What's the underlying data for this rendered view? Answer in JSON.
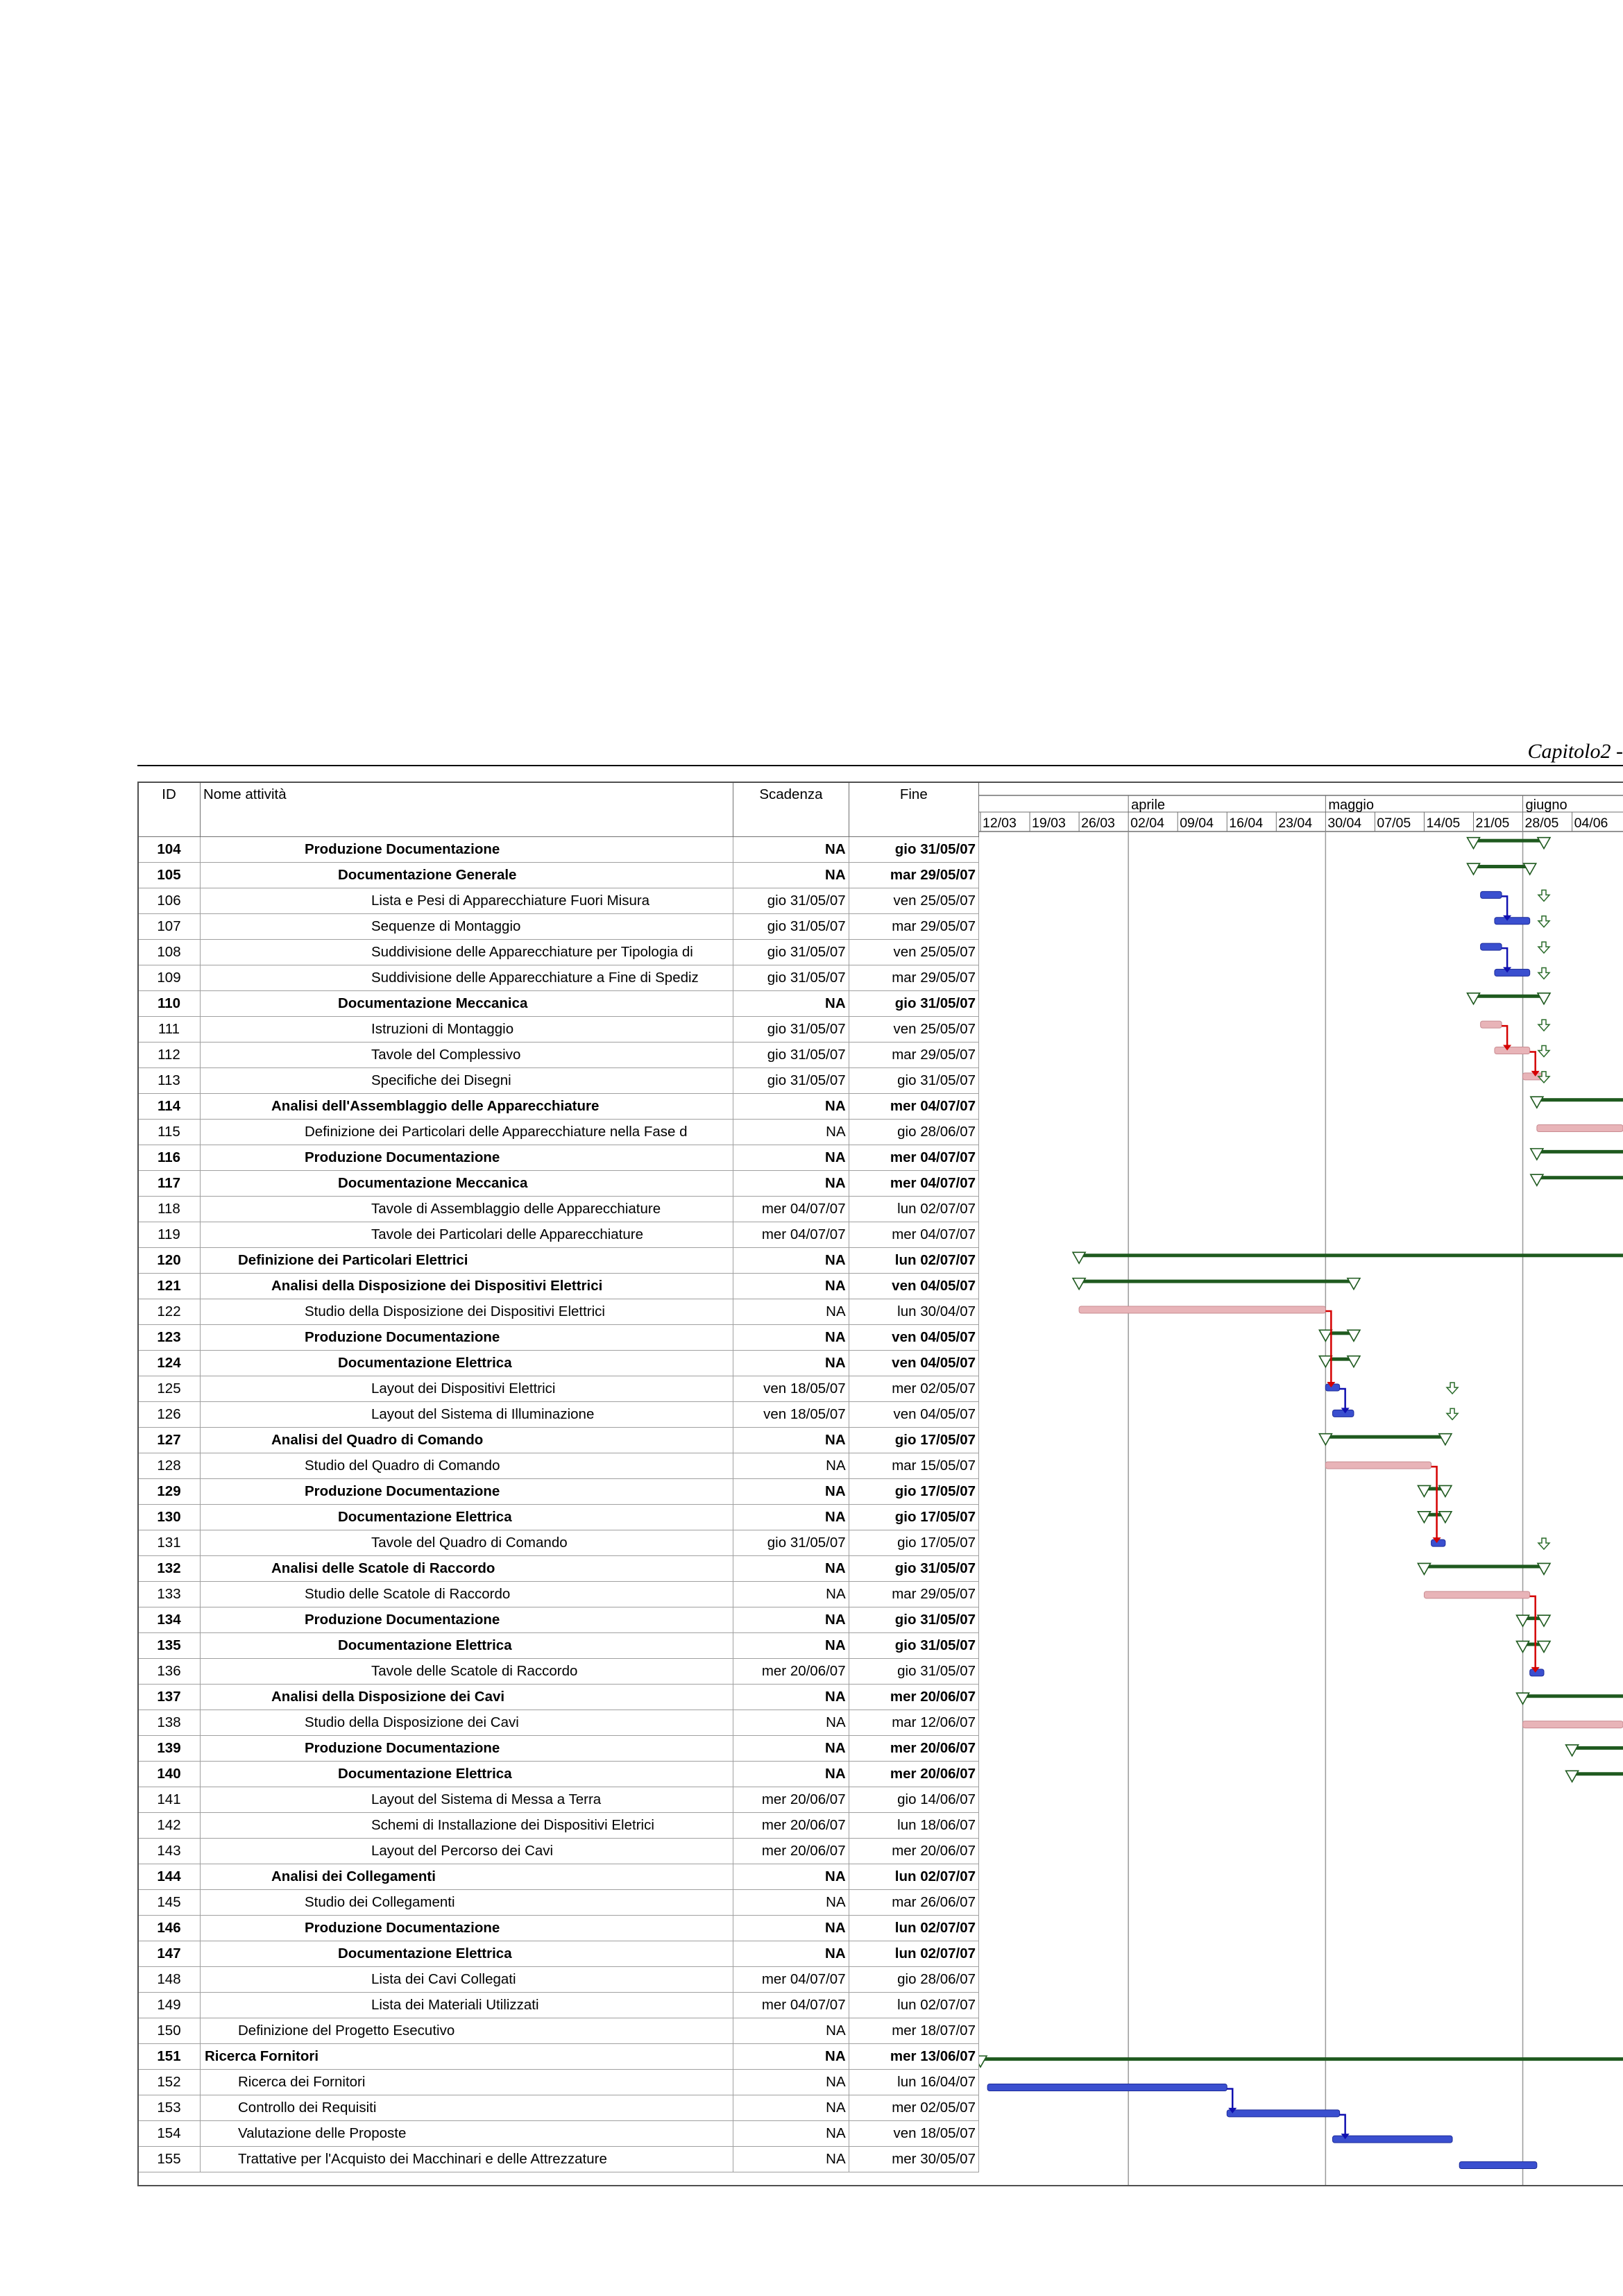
{
  "header": {
    "title": "Capitolo2 -"
  },
  "columns": {
    "id": "ID",
    "name": "Nome attività",
    "deadline": "Scadenza",
    "end": "Fine"
  },
  "timescale": {
    "months": [
      "aprile",
      "maggio",
      "giugno"
    ],
    "weeks": [
      "12/03",
      "19/03",
      "26/03",
      "02/04",
      "09/04",
      "16/04",
      "23/04",
      "30/04",
      "07/05",
      "14/05",
      "21/05",
      "28/05",
      "04/06"
    ]
  },
  "colors": {
    "summary": "#1f5a1f",
    "task_blue": "#3a4fcf",
    "task_pink": "#e8b4b8",
    "critical_link": "#d40000",
    "blue_link": "#1010b0"
  },
  "tasks": [
    {
      "id": "104",
      "name": "Produzione Documentazione",
      "indent": 3,
      "summary": true,
      "deadline": "NA",
      "end": "gio 31/05/07"
    },
    {
      "id": "105",
      "name": "Documentazione Generale",
      "indent": 4,
      "summary": true,
      "deadline": "NA",
      "end": "mar 29/05/07"
    },
    {
      "id": "106",
      "name": "Lista e Pesi di Apparecchiature Fuori Misura",
      "indent": 5,
      "summary": false,
      "deadline": "gio 31/05/07",
      "end": "ven 25/05/07"
    },
    {
      "id": "107",
      "name": "Sequenze di Montaggio",
      "indent": 5,
      "summary": false,
      "deadline": "gio 31/05/07",
      "end": "mar 29/05/07"
    },
    {
      "id": "108",
      "name": "Suddivisione delle Apparecchiature per Tipologia di",
      "indent": 5,
      "summary": false,
      "deadline": "gio 31/05/07",
      "end": "ven 25/05/07"
    },
    {
      "id": "109",
      "name": "Suddivisione delle Apparecchiature a Fine di Spediz",
      "indent": 5,
      "summary": false,
      "deadline": "gio 31/05/07",
      "end": "mar 29/05/07"
    },
    {
      "id": "110",
      "name": "Documentazione Meccanica",
      "indent": 4,
      "summary": true,
      "deadline": "NA",
      "end": "gio 31/05/07"
    },
    {
      "id": "111",
      "name": "Istruzioni di Montaggio",
      "indent": 5,
      "summary": false,
      "deadline": "gio 31/05/07",
      "end": "ven 25/05/07"
    },
    {
      "id": "112",
      "name": "Tavole del Complessivo",
      "indent": 5,
      "summary": false,
      "deadline": "gio 31/05/07",
      "end": "mar 29/05/07"
    },
    {
      "id": "113",
      "name": "Specifiche dei Disegni",
      "indent": 5,
      "summary": false,
      "deadline": "gio 31/05/07",
      "end": "gio 31/05/07"
    },
    {
      "id": "114",
      "name": "Analisi dell'Assemblaggio delle Apparecchiature",
      "indent": 2,
      "summary": true,
      "deadline": "NA",
      "end": "mer 04/07/07"
    },
    {
      "id": "115",
      "name": "Definizione dei Particolari delle Apparecchiature nella Fase d",
      "indent": 3,
      "summary": false,
      "deadline": "NA",
      "end": "gio 28/06/07"
    },
    {
      "id": "116",
      "name": "Produzione Documentazione",
      "indent": 3,
      "summary": true,
      "deadline": "NA",
      "end": "mer 04/07/07"
    },
    {
      "id": "117",
      "name": "Documentazione Meccanica",
      "indent": 4,
      "summary": true,
      "deadline": "NA",
      "end": "mer 04/07/07"
    },
    {
      "id": "118",
      "name": "Tavole di Assemblaggio delle Apparecchiature",
      "indent": 5,
      "summary": false,
      "deadline": "mer 04/07/07",
      "end": "lun 02/07/07"
    },
    {
      "id": "119",
      "name": "Tavole dei Particolari delle Apparecchiature",
      "indent": 5,
      "summary": false,
      "deadline": "mer 04/07/07",
      "end": "mer 04/07/07"
    },
    {
      "id": "120",
      "name": "Definizione dei Particolari Elettrici",
      "indent": 1,
      "summary": true,
      "deadline": "NA",
      "end": "lun 02/07/07"
    },
    {
      "id": "121",
      "name": "Analisi della Disposizione dei Dispositivi Elettrici",
      "indent": 2,
      "summary": true,
      "deadline": "NA",
      "end": "ven 04/05/07"
    },
    {
      "id": "122",
      "name": "Studio della Disposizione dei Dispositivi Elettrici",
      "indent": 3,
      "summary": false,
      "deadline": "NA",
      "end": "lun 30/04/07"
    },
    {
      "id": "123",
      "name": "Produzione Documentazione",
      "indent": 3,
      "summary": true,
      "deadline": "NA",
      "end": "ven 04/05/07"
    },
    {
      "id": "124",
      "name": "Documentazione Elettrica",
      "indent": 4,
      "summary": true,
      "deadline": "NA",
      "end": "ven 04/05/07"
    },
    {
      "id": "125",
      "name": "Layout dei Dispositivi Elettrici",
      "indent": 5,
      "summary": false,
      "deadline": "ven 18/05/07",
      "end": "mer 02/05/07"
    },
    {
      "id": "126",
      "name": "Layout del Sistema di Illuminazione",
      "indent": 5,
      "summary": false,
      "deadline": "ven 18/05/07",
      "end": "ven 04/05/07"
    },
    {
      "id": "127",
      "name": "Analisi del Quadro di Comando",
      "indent": 2,
      "summary": true,
      "deadline": "NA",
      "end": "gio 17/05/07"
    },
    {
      "id": "128",
      "name": "Studio del Quadro di Comando",
      "indent": 3,
      "summary": false,
      "deadline": "NA",
      "end": "mar 15/05/07"
    },
    {
      "id": "129",
      "name": "Produzione Documentazione",
      "indent": 3,
      "summary": true,
      "deadline": "NA",
      "end": "gio 17/05/07"
    },
    {
      "id": "130",
      "name": "Documentazione Elettrica",
      "indent": 4,
      "summary": true,
      "deadline": "NA",
      "end": "gio 17/05/07"
    },
    {
      "id": "131",
      "name": "Tavole del Quadro di Comando",
      "indent": 5,
      "summary": false,
      "deadline": "gio 31/05/07",
      "end": "gio 17/05/07"
    },
    {
      "id": "132",
      "name": "Analisi delle Scatole di Raccordo",
      "indent": 2,
      "summary": true,
      "deadline": "NA",
      "end": "gio 31/05/07"
    },
    {
      "id": "133",
      "name": "Studio delle Scatole di Raccordo",
      "indent": 3,
      "summary": false,
      "deadline": "NA",
      "end": "mar 29/05/07"
    },
    {
      "id": "134",
      "name": "Produzione Documentazione",
      "indent": 3,
      "summary": true,
      "deadline": "NA",
      "end": "gio 31/05/07"
    },
    {
      "id": "135",
      "name": "Documentazione Elettrica",
      "indent": 4,
      "summary": true,
      "deadline": "NA",
      "end": "gio 31/05/07"
    },
    {
      "id": "136",
      "name": "Tavole delle Scatole di Raccordo",
      "indent": 5,
      "summary": false,
      "deadline": "mer 20/06/07",
      "end": "gio 31/05/07"
    },
    {
      "id": "137",
      "name": "Analisi della Disposizione dei Cavi",
      "indent": 2,
      "summary": true,
      "deadline": "NA",
      "end": "mer 20/06/07"
    },
    {
      "id": "138",
      "name": "Studio della Disposizione dei Cavi",
      "indent": 3,
      "summary": false,
      "deadline": "NA",
      "end": "mar 12/06/07"
    },
    {
      "id": "139",
      "name": "Produzione Documentazione",
      "indent": 3,
      "summary": true,
      "deadline": "NA",
      "end": "mer 20/06/07"
    },
    {
      "id": "140",
      "name": "Documentazione Elettrica",
      "indent": 4,
      "summary": true,
      "deadline": "NA",
      "end": "mer 20/06/07"
    },
    {
      "id": "141",
      "name": "Layout del Sistema di Messa a Terra",
      "indent": 5,
      "summary": false,
      "deadline": "mer 20/06/07",
      "end": "gio 14/06/07"
    },
    {
      "id": "142",
      "name": "Schemi di Installazione dei Dispositivi Eletrici",
      "indent": 5,
      "summary": false,
      "deadline": "mer 20/06/07",
      "end": "lun 18/06/07"
    },
    {
      "id": "143",
      "name": "Layout del Percorso dei Cavi",
      "indent": 5,
      "summary": false,
      "deadline": "mer 20/06/07",
      "end": "mer 20/06/07"
    },
    {
      "id": "144",
      "name": "Analisi dei Collegamenti",
      "indent": 2,
      "summary": true,
      "deadline": "NA",
      "end": "lun 02/07/07"
    },
    {
      "id": "145",
      "name": "Studio dei Collegamenti",
      "indent": 3,
      "summary": false,
      "deadline": "NA",
      "end": "mar 26/06/07"
    },
    {
      "id": "146",
      "name": "Produzione Documentazione",
      "indent": 3,
      "summary": true,
      "deadline": "NA",
      "end": "lun 02/07/07"
    },
    {
      "id": "147",
      "name": "Documentazione Elettrica",
      "indent": 4,
      "summary": true,
      "deadline": "NA",
      "end": "lun 02/07/07"
    },
    {
      "id": "148",
      "name": "Lista dei Cavi Collegati",
      "indent": 5,
      "summary": false,
      "deadline": "mer 04/07/07",
      "end": "gio 28/06/07"
    },
    {
      "id": "149",
      "name": "Lista dei Materiali Utilizzati",
      "indent": 5,
      "summary": false,
      "deadline": "mer 04/07/07",
      "end": "lun 02/07/07"
    },
    {
      "id": "150",
      "name": "Definizione del Progetto Esecutivo",
      "indent": 1,
      "summary": false,
      "deadline": "NA",
      "end": "mer 18/07/07"
    },
    {
      "id": "151",
      "name": "Ricerca Fornitori",
      "indent": 0,
      "summary": true,
      "deadline": "NA",
      "end": "mer 13/06/07"
    },
    {
      "id": "152",
      "name": "Ricerca dei Fornitori",
      "indent": 1,
      "summary": false,
      "deadline": "NA",
      "end": "lun 16/04/07"
    },
    {
      "id": "153",
      "name": "Controllo dei Requisiti",
      "indent": 1,
      "summary": false,
      "deadline": "NA",
      "end": "mer 02/05/07"
    },
    {
      "id": "154",
      "name": "Valutazione delle Proposte",
      "indent": 1,
      "summary": false,
      "deadline": "NA",
      "end": "ven 18/05/07"
    },
    {
      "id": "155",
      "name": "Trattative per l'Acquisto dei Macchinari e delle Attrezzature",
      "indent": 1,
      "summary": false,
      "deadline": "NA",
      "end": "mer 30/05/07"
    }
  ]
}
